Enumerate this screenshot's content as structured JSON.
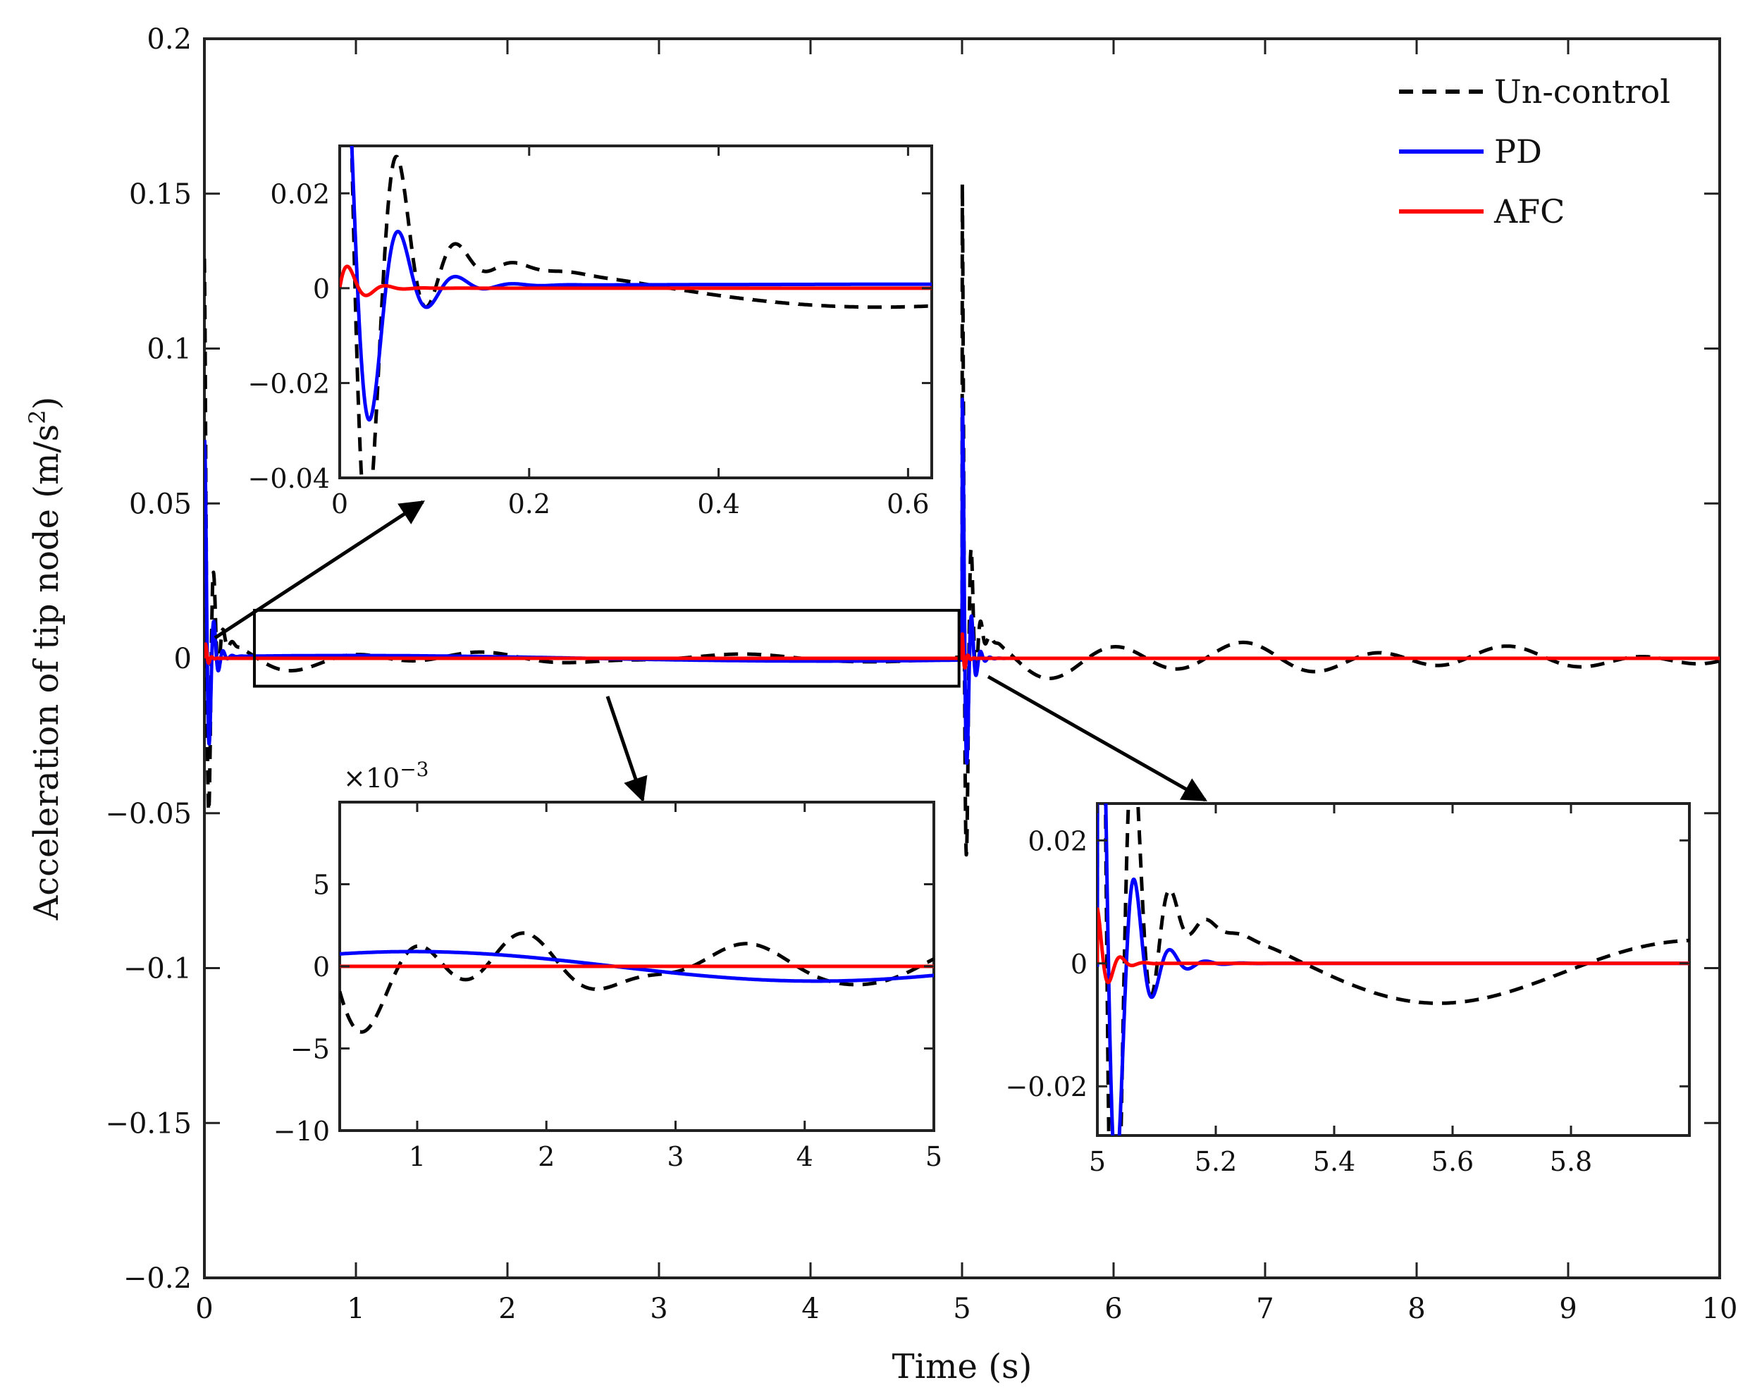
{
  "chart_data": {
    "type": "line",
    "title": "",
    "xlabel": "Time (s)",
    "ylabel_main": "Acceleration of tip node (m/s",
    "ylabel_sup": "2",
    "ylabel_close": ")",
    "xlim": [
      0,
      10
    ],
    "ylim": [
      -0.2,
      0.2
    ],
    "xticks": [
      0,
      1,
      2,
      3,
      4,
      5,
      6,
      7,
      8,
      9,
      10
    ],
    "xtick_labels": [
      "0",
      "1",
      "2",
      "3",
      "4",
      "5",
      "6",
      "7",
      "8",
      "9",
      "10"
    ],
    "yticks": [
      -0.2,
      -0.15,
      -0.1,
      -0.05,
      0,
      0.05,
      0.1,
      0.15,
      0.2
    ],
    "ytick_labels": [
      "−0.2",
      "−0.15",
      "−0.1",
      "−0.05",
      "0",
      "0.05",
      "0.1",
      "0.15",
      "0.2"
    ],
    "legend": {
      "position": "top-right",
      "entries": [
        {
          "label": "Un-control",
          "color": "#000000",
          "style": "dashed"
        },
        {
          "label": "PD",
          "color": "#0000ff",
          "style": "solid"
        },
        {
          "label": "AFC",
          "color": "#ff0000",
          "style": "solid"
        }
      ]
    },
    "series": [
      {
        "name": "Un-control",
        "color": "#000000",
        "dash": true,
        "segments": [
          {
            "t0": 0,
            "t1": 5,
            "components": [
              {
                "A": 0.125,
                "decay": 28,
                "freq": 16,
                "phase": 1.57
              },
              {
                "A": 0.0052,
                "decay": 0.9,
                "freq": 1.15,
                "phase": 0.6
              },
              {
                "A": 0.0012,
                "decay": 0,
                "freq": 0.55,
                "phase": 2.0
              }
            ]
          },
          {
            "t0": 5,
            "t1": 10,
            "components": [
              {
                "A": 0.16,
                "decay": 28,
                "freq": 16,
                "phase": 1.57
              },
              {
                "A": 0.0062,
                "decay": 0.25,
                "freq": 1.15,
                "phase": 0.6
              },
              {
                "A": 0.0015,
                "decay": 0,
                "freq": 0.55,
                "phase": 2.0
              }
            ]
          }
        ]
      },
      {
        "name": "PD",
        "color": "#0000ff",
        "dash": false,
        "segments": [
          {
            "t0": 0,
            "t1": 5,
            "components": [
              {
                "A": 0.075,
                "decay": 30,
                "freq": 16.5,
                "phase": 1.2
              },
              {
                "A": 0.0009,
                "decay": 0,
                "freq": 0.16,
                "phase": 0.6
              }
            ]
          },
          {
            "t0": 5,
            "t1": 10,
            "components": [
              {
                "A": 0.09,
                "decay": 30,
                "freq": 16.5,
                "phase": 1.2
              }
            ]
          }
        ]
      },
      {
        "name": "AFC",
        "color": "#ff0000",
        "dash": false,
        "segments": [
          {
            "t0": 0,
            "t1": 5,
            "components": [
              {
                "A": 0.0075,
                "decay": 55,
                "freq": 25,
                "phase": 0.0
              }
            ]
          },
          {
            "t0": 5,
            "t1": 10,
            "components": [
              {
                "A": 0.009,
                "decay": 55,
                "freq": 25,
                "phase": 1.5
              }
            ]
          }
        ]
      }
    ],
    "zoom_box": {
      "x": [
        0.33,
        4.98
      ],
      "y": [
        -0.009,
        0.0155
      ]
    },
    "insets": [
      {
        "name": "inset-early",
        "xlim": [
          0,
          0.625
        ],
        "ylim": [
          -0.04,
          0.03
        ],
        "xticks": [
          0,
          0.2,
          0.4,
          0.6
        ],
        "xtick_labels": [
          "0",
          "0.2",
          "0.4",
          "0.6"
        ],
        "yticks": [
          -0.04,
          -0.02,
          0,
          0.02
        ],
        "ytick_labels": [
          "−0.04",
          "−0.02",
          "0",
          "0.02"
        ],
        "multiplier": ""
      },
      {
        "name": "inset-mid",
        "xlim": [
          0.4,
          5
        ],
        "ylim": [
          -0.01,
          0.01
        ],
        "yscale": 1000,
        "xticks": [
          1,
          2,
          3,
          4,
          5
        ],
        "xtick_labels": [
          "1",
          "2",
          "3",
          "4",
          "5"
        ],
        "yticks": [
          -0.01,
          -0.005,
          0,
          0.005
        ],
        "ytick_labels": [
          "−10",
          "−5",
          "0",
          "5"
        ],
        "multiplier": "×10",
        "multiplier_exp": "−3"
      },
      {
        "name": "inset-late",
        "xlim": [
          5,
          6
        ],
        "ylim": [
          -0.028,
          0.026
        ],
        "xticks": [
          5,
          5.2,
          5.4,
          5.6,
          5.8
        ],
        "xtick_labels": [
          "5",
          "5.2",
          "5.4",
          "5.6",
          "5.8"
        ],
        "yticks": [
          -0.02,
          0,
          0.02
        ],
        "ytick_labels": [
          "−0.02",
          "0",
          "0.02"
        ],
        "multiplier": ""
      }
    ]
  }
}
